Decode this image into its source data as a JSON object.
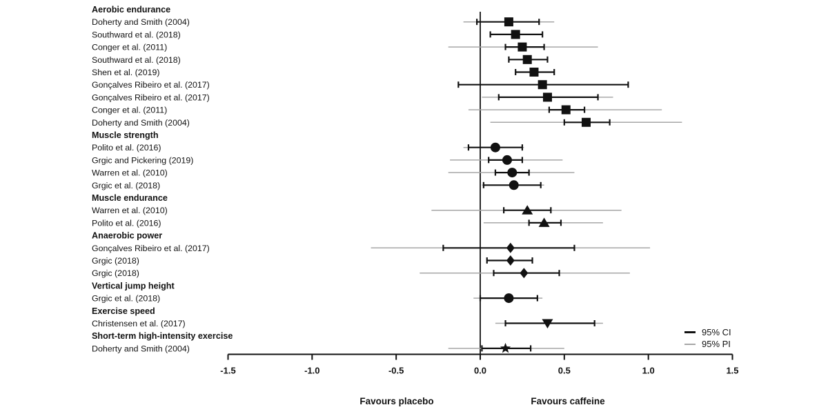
{
  "chart_data": {
    "type": "forest",
    "title": "",
    "xlim": [
      -1.5,
      1.5
    ],
    "xticks": [
      -1.5,
      -1.0,
      -0.5,
      0.0,
      0.5,
      1.0,
      1.5
    ],
    "xtick_labels": [
      "-1.5",
      "-1.0",
      "-0.5",
      "0.0",
      "0.5",
      "1.0",
      "1.5"
    ],
    "xlabel_left": "Favours placebo",
    "xlabel_right": "Favours caffeine",
    "grid": false,
    "legend_position": "bottom-right",
    "legend": [
      {
        "label": "95% CI",
        "color": "#111111",
        "style": "thick"
      },
      {
        "label": "95% PI",
        "color": "#a6a6a6",
        "style": "thin"
      }
    ],
    "colors": {
      "ci": "#111111",
      "pi": "#a6a6a6",
      "axis": "#111111"
    },
    "rows": [
      {
        "kind": "header",
        "label": "Aerobic endurance"
      },
      {
        "kind": "study",
        "label": "Doherty and Smith (2004)",
        "marker": "square",
        "estimate": 0.17,
        "ci": [
          -0.02,
          0.35
        ],
        "pi": [
          -0.1,
          0.44
        ]
      },
      {
        "kind": "study",
        "label": "Southward et al. (2018)",
        "marker": "square",
        "estimate": 0.21,
        "ci": [
          0.06,
          0.37
        ],
        "pi": null
      },
      {
        "kind": "study",
        "label": "Conger et al. (2011)",
        "marker": "square",
        "estimate": 0.25,
        "ci": [
          0.15,
          0.38
        ],
        "pi": [
          -0.19,
          0.7
        ]
      },
      {
        "kind": "study",
        "label": "Southward et al. (2018)",
        "marker": "square",
        "estimate": 0.28,
        "ci": [
          0.17,
          0.4
        ],
        "pi": null
      },
      {
        "kind": "study",
        "label": "Shen et al. (2019)",
        "marker": "square",
        "estimate": 0.32,
        "ci": [
          0.21,
          0.44
        ],
        "pi": null
      },
      {
        "kind": "study",
        "label": "Gonçalves Ribeiro et al. (2017)",
        "marker": "square",
        "estimate": 0.37,
        "ci": [
          -0.13,
          0.88
        ],
        "pi": null
      },
      {
        "kind": "study",
        "label": "Gonçalves Ribeiro et al. (2017)",
        "marker": "square",
        "estimate": 0.4,
        "ci": [
          0.11,
          0.7
        ],
        "pi": [
          0.01,
          0.79
        ]
      },
      {
        "kind": "study",
        "label": "Conger et al. (2011)",
        "marker": "square",
        "estimate": 0.51,
        "ci": [
          0.41,
          0.62
        ],
        "pi": [
          -0.07,
          1.08
        ]
      },
      {
        "kind": "study",
        "label": "Doherty and Smith (2004)",
        "marker": "square",
        "estimate": 0.63,
        "ci": [
          0.5,
          0.77
        ],
        "pi": [
          0.06,
          1.2
        ]
      },
      {
        "kind": "header",
        "label": "Muscle strength"
      },
      {
        "kind": "study",
        "label": "Polito et al. (2016)",
        "marker": "circle",
        "estimate": 0.09,
        "ci": [
          -0.07,
          0.25
        ],
        "pi": [
          -0.1,
          0.26
        ]
      },
      {
        "kind": "study",
        "label": "Grgic and Pickering (2019)",
        "marker": "circle",
        "estimate": 0.16,
        "ci": [
          0.05,
          0.25
        ],
        "pi": [
          -0.18,
          0.49
        ]
      },
      {
        "kind": "study",
        "label": "Warren et al. (2010)",
        "marker": "circle",
        "estimate": 0.19,
        "ci": [
          0.09,
          0.29
        ],
        "pi": [
          -0.19,
          0.56
        ]
      },
      {
        "kind": "study",
        "label": "Grgic et al. (2018)",
        "marker": "circle",
        "estimate": 0.2,
        "ci": [
          0.02,
          0.36
        ],
        "pi": [
          0.01,
          0.38
        ]
      },
      {
        "kind": "header",
        "label": "Muscle endurance"
      },
      {
        "kind": "study",
        "label": "Warren et al. (2010)",
        "marker": "triangle-up",
        "estimate": 0.28,
        "ci": [
          0.14,
          0.42
        ],
        "pi": [
          -0.29,
          0.84
        ]
      },
      {
        "kind": "study",
        "label": "Polito et al. (2016)",
        "marker": "triangle-up",
        "estimate": 0.38,
        "ci": [
          0.29,
          0.48
        ],
        "pi": [
          0.02,
          0.73
        ]
      },
      {
        "kind": "header",
        "label": "Anaerobic power"
      },
      {
        "kind": "study",
        "label": "Gonçalves Ribeiro et al. (2017)",
        "marker": "diamond",
        "estimate": 0.18,
        "ci": [
          -0.22,
          0.56
        ],
        "pi": [
          -0.65,
          1.01
        ]
      },
      {
        "kind": "study",
        "label": "Grgic (2018)",
        "marker": "diamond",
        "estimate": 0.18,
        "ci": [
          0.04,
          0.31
        ],
        "pi": null
      },
      {
        "kind": "study",
        "label": "Grgic (2018)",
        "marker": "diamond",
        "estimate": 0.26,
        "ci": [
          0.08,
          0.47
        ],
        "pi": [
          -0.36,
          0.89
        ]
      },
      {
        "kind": "header",
        "label": "Vertical jump height"
      },
      {
        "kind": "study",
        "label": "Grgic et al. (2018)",
        "marker": "circle",
        "estimate": 0.17,
        "ci": [
          0.0,
          0.34
        ],
        "pi": [
          -0.04,
          0.37
        ]
      },
      {
        "kind": "header",
        "label": "Exercise speed"
      },
      {
        "kind": "study",
        "label": "Christensen et al. (2017)",
        "marker": "triangle-down",
        "estimate": 0.4,
        "ci": [
          0.15,
          0.68
        ],
        "pi": [
          0.09,
          0.73
        ]
      },
      {
        "kind": "header",
        "label": "Short-term high-intensity exercise"
      },
      {
        "kind": "study",
        "label": "Doherty and Smith (2004)",
        "marker": "star",
        "estimate": 0.15,
        "ci": [
          0.01,
          0.3
        ],
        "pi": [
          -0.19,
          0.5
        ]
      }
    ]
  }
}
